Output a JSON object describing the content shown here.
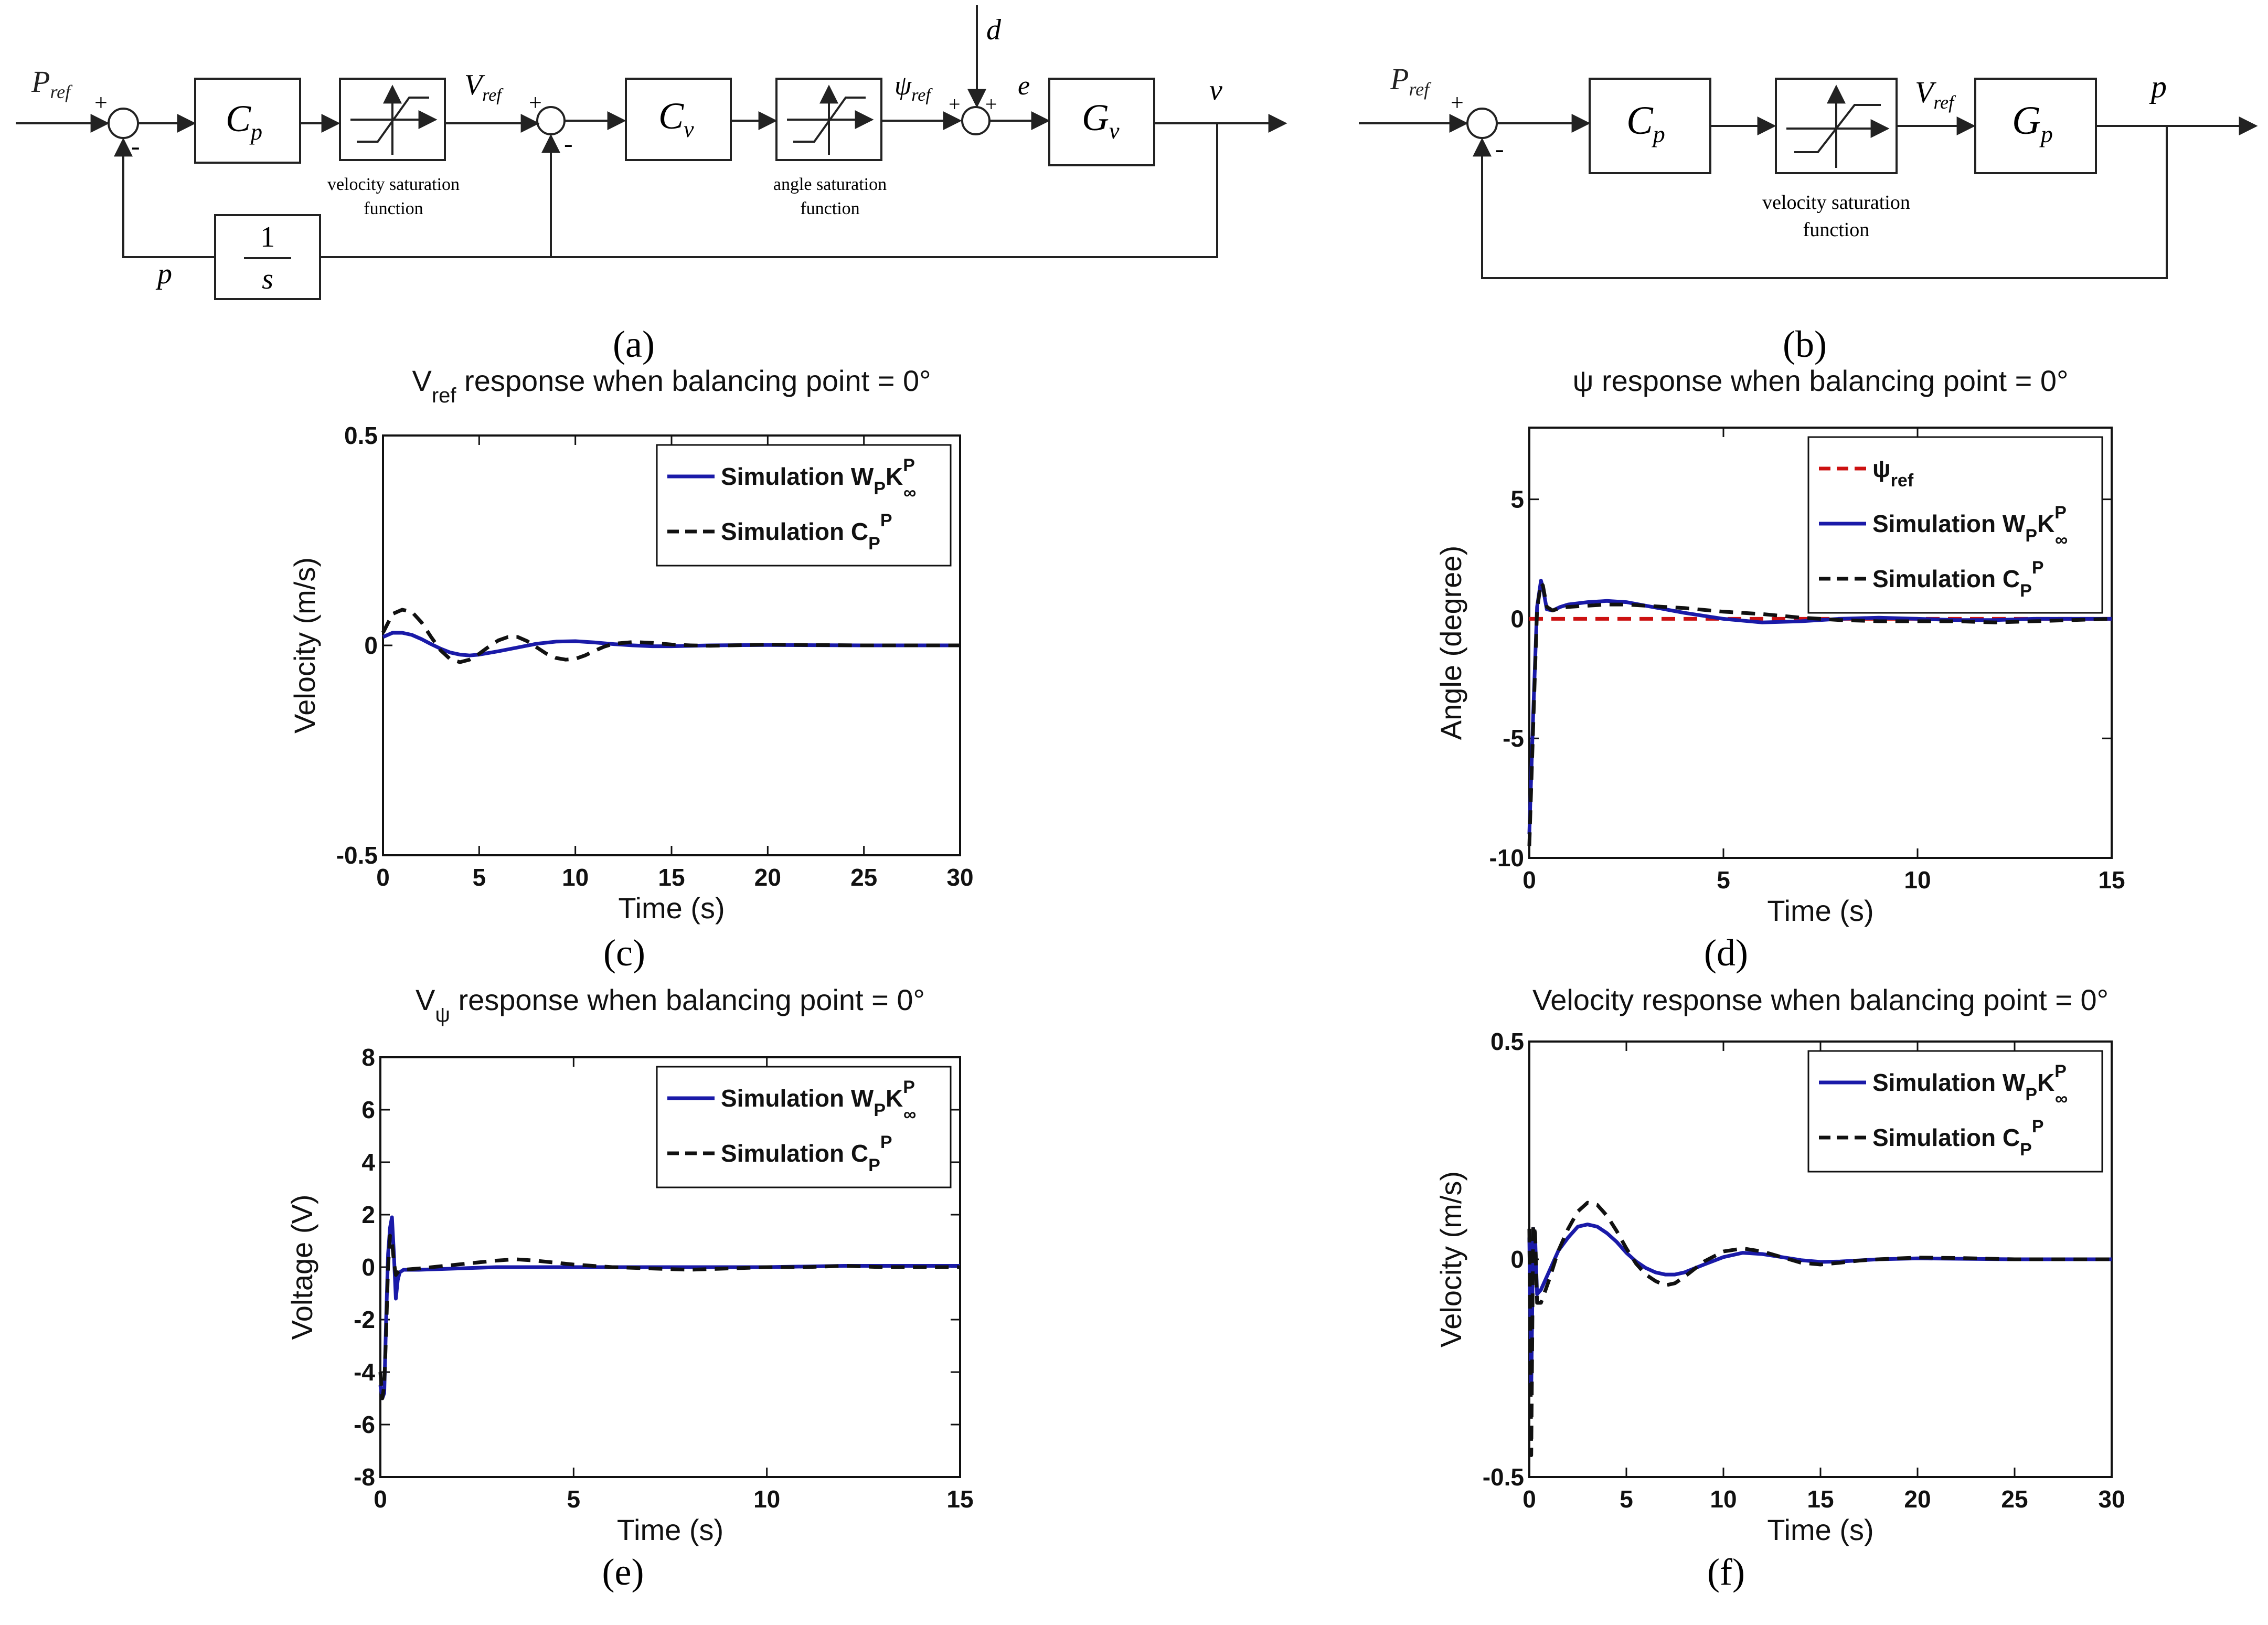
{
  "colors": {
    "blue": "#1a1aa8",
    "black": "#111111",
    "red": "#cc1111"
  },
  "diagram_a": {
    "label": "(a)",
    "input": "P",
    "input_sub": "ref",
    "block_cp": "C",
    "block_cp_sub": "p",
    "sat1_caption": [
      "velocity saturation",
      "function"
    ],
    "vref": "V",
    "vref_sub": "ref",
    "block_cv": "C",
    "block_cv_sub": "v",
    "sat2_caption": [
      "angle saturation",
      "function"
    ],
    "psiref": "ψ",
    "psiref_sub": "ref",
    "dist": "d",
    "err": "e",
    "block_gv": "G",
    "block_gv_sub": "v",
    "output": "v",
    "feedback": "p",
    "integrator_num": "1",
    "integrator_den": "s",
    "plus": "+",
    "minus": "-"
  },
  "diagram_b": {
    "label": "(b)",
    "input": "P",
    "input_sub": "ref",
    "block_cp": "C",
    "block_cp_sub": "p",
    "sat_caption": [
      "velocity saturation",
      "function"
    ],
    "vref": "V",
    "vref_sub": "ref",
    "block_gp": "G",
    "block_gp_sub": "p",
    "output": "p",
    "plus": "+",
    "minus": "-"
  },
  "chart_data": [
    {
      "panel": "(c)",
      "type": "line",
      "title_main": "V",
      "title_sub": "ref",
      "title_rest": " response when balancing point = 0°",
      "xlabel": "Time (s)",
      "ylabel": "Velocity (m/s)",
      "xlim": [
        0,
        30
      ],
      "ylim": [
        -0.5,
        0.5
      ],
      "xticks": [
        "0",
        "5",
        "10",
        "15",
        "20",
        "25",
        "30"
      ],
      "yticks": [
        "-0.5",
        "0",
        "0.5"
      ],
      "legend": [
        {
          "style": "solid-blue",
          "text": "Simulation W",
          "sub": "P",
          "mid": "K",
          "sup": "P",
          "sub2": "∞"
        },
        {
          "style": "dash-black",
          "text": "Simulation C",
          "sub": "P",
          "sup": "P"
        }
      ],
      "series": [
        {
          "name": "Simulation WPK∞P",
          "style": "solid-blue",
          "x": [
            0,
            0.5,
            1,
            1.5,
            2,
            2.5,
            3,
            3.5,
            4,
            4.5,
            5,
            6,
            7,
            8,
            9,
            10,
            11,
            12,
            13,
            14,
            15,
            17,
            20,
            25,
            30
          ],
          "y": [
            0.02,
            0.03,
            0.03,
            0.025,
            0.015,
            0.003,
            -0.008,
            -0.017,
            -0.022,
            -0.024,
            -0.022,
            -0.014,
            -0.005,
            0.004,
            0.009,
            0.01,
            0.007,
            0.003,
            0,
            -0.002,
            -0.002,
            0,
            0.001,
            0,
            0
          ]
        },
        {
          "name": "Simulation CPP",
          "style": "dash-black",
          "x": [
            0,
            0.5,
            1,
            1.5,
            2,
            2.5,
            3,
            3.5,
            4,
            4.5,
            5,
            5.5,
            6,
            6.5,
            7,
            7.5,
            8,
            8.5,
            9,
            9.5,
            10,
            10.5,
            11,
            11.5,
            12,
            13,
            14,
            15,
            16,
            17,
            18,
            20,
            22,
            25,
            30
          ],
          "y": [
            0.03,
            0.075,
            0.085,
            0.08,
            0.055,
            0.02,
            -0.012,
            -0.033,
            -0.04,
            -0.034,
            -0.02,
            -0.003,
            0.012,
            0.02,
            0.02,
            0.01,
            -0.005,
            -0.02,
            -0.03,
            -0.034,
            -0.032,
            -0.024,
            -0.013,
            -0.003,
            0.004,
            0.008,
            0.006,
            0.002,
            0,
            -0.001,
            0,
            0.002,
            0.001,
            0,
            0
          ]
        }
      ]
    },
    {
      "panel": "(d)",
      "type": "line",
      "title_main": "ψ",
      "title_sub": "",
      "title_rest": " response when balancing point = 0°",
      "xlabel": "Time (s)",
      "ylabel": "Angle (degree)",
      "xlim": [
        0,
        15
      ],
      "ylim": [
        -10,
        8
      ],
      "xticks": [
        "0",
        "5",
        "10",
        "15"
      ],
      "yticks": [
        "-10",
        "-5",
        "0",
        "5"
      ],
      "legend": [
        {
          "style": "dash-red",
          "text": "ψ",
          "sub": "ref"
        },
        {
          "style": "solid-blue",
          "text": "Simulation W",
          "sub": "P",
          "mid": "K",
          "sup": "P",
          "sub2": "∞"
        },
        {
          "style": "dash-black",
          "text": "Simulation C",
          "sub": "P",
          "sup": "P"
        }
      ],
      "series": [
        {
          "name": "ψref",
          "style": "dash-red",
          "x": [
            0,
            15
          ],
          "y": [
            0,
            0
          ]
        },
        {
          "name": "Simulation WPK∞P",
          "style": "solid-blue",
          "x": [
            0,
            0.1,
            0.2,
            0.3,
            0.35,
            0.45,
            0.6,
            0.8,
            1,
            1.5,
            2,
            2.5,
            3,
            3.5,
            4,
            5,
            6,
            7,
            8,
            9,
            10,
            11,
            12,
            13,
            14,
            15
          ],
          "y": [
            -9,
            -4,
            0.5,
            1.6,
            1.3,
            0.4,
            0.35,
            0.5,
            0.6,
            0.7,
            0.75,
            0.7,
            0.55,
            0.4,
            0.25,
            0,
            -0.15,
            -0.1,
            0,
            0.05,
            0,
            -0.05,
            -0.05,
            0,
            0,
            0
          ]
        },
        {
          "name": "Simulation CPP",
          "style": "dash-black",
          "x": [
            0,
            0.1,
            0.2,
            0.3,
            0.35,
            0.45,
            0.6,
            0.8,
            1,
            1.5,
            2,
            2.5,
            3,
            3.5,
            4,
            5,
            6,
            7,
            8,
            9,
            10,
            11,
            12,
            13,
            14,
            15
          ],
          "y": [
            -9.5,
            -4.5,
            0.4,
            1.5,
            1.4,
            0.5,
            0.35,
            0.45,
            0.5,
            0.55,
            0.6,
            0.6,
            0.55,
            0.5,
            0.45,
            0.3,
            0.2,
            0.05,
            -0.05,
            -0.1,
            -0.1,
            -0.1,
            -0.15,
            -0.1,
            -0.05,
            0
          ]
        }
      ]
    },
    {
      "panel": "(e)",
      "type": "line",
      "title_main": "V",
      "title_sub": "ψ",
      "title_rest": " response when balancing point = 0°",
      "xlabel": "Time (s)",
      "ylabel": "Voltage (V)",
      "xlim": [
        0,
        15
      ],
      "ylim": [
        -8,
        8
      ],
      "xticks": [
        "0",
        "5",
        "10",
        "15"
      ],
      "yticks": [
        "-8",
        "-6",
        "-4",
        "-2",
        "0",
        "2",
        "4",
        "6",
        "8"
      ],
      "legend": [
        {
          "style": "solid-blue",
          "text": "Simulation W",
          "sub": "P",
          "mid": "K",
          "sup": "P",
          "sub2": "∞"
        },
        {
          "style": "dash-black",
          "text": "Simulation C",
          "sub": "P",
          "sup": "P"
        }
      ],
      "series": [
        {
          "name": "Simulation WPK∞P",
          "style": "solid-blue",
          "x": [
            0,
            0.05,
            0.1,
            0.15,
            0.2,
            0.25,
            0.3,
            0.35,
            0.4,
            0.45,
            0.5,
            0.6,
            1,
            2,
            3,
            4,
            5,
            6,
            8,
            10,
            12,
            15
          ],
          "y": [
            -4.5,
            -5,
            -4.8,
            -2,
            0.5,
            1.5,
            1.9,
            0.5,
            -1.2,
            -0.5,
            -0.2,
            -0.1,
            -0.1,
            -0.05,
            0,
            0,
            0,
            0,
            0,
            0,
            0.05,
            0.05
          ]
        },
        {
          "name": "Simulation CPP",
          "style": "dash-black",
          "x": [
            0,
            0.05,
            0.1,
            0.15,
            0.2,
            0.25,
            0.3,
            0.35,
            0.4,
            0.45,
            0.5,
            0.6,
            1,
            2,
            3,
            3.5,
            4,
            5,
            6,
            7,
            8,
            9,
            10,
            11,
            12,
            13,
            15
          ],
          "y": [
            -4,
            -5,
            -4.5,
            -2.5,
            0,
            1.2,
            1,
            0.2,
            -0.3,
            -0.2,
            -0.15,
            -0.1,
            -0.05,
            0.1,
            0.25,
            0.3,
            0.25,
            0.1,
            0,
            -0.05,
            -0.1,
            -0.05,
            0,
            0,
            0.05,
            0,
            0
          ]
        }
      ]
    },
    {
      "panel": "(f)",
      "type": "line",
      "title_main": "Velocity",
      "title_sub": "",
      "title_rest": " response when balancing point = 0°",
      "xlabel": "Time (s)",
      "ylabel": "Velocity (m/s)",
      "xlim": [
        0,
        30
      ],
      "ylim": [
        -0.5,
        0.5
      ],
      "xticks": [
        "0",
        "5",
        "10",
        "15",
        "20",
        "25",
        "30"
      ],
      "yticks": [
        "-0.5",
        "0",
        "0.5"
      ],
      "legend": [
        {
          "style": "solid-blue",
          "text": "Simulation W",
          "sub": "P",
          "mid": "K",
          "sup": "P",
          "sub2": "∞"
        },
        {
          "style": "dash-black",
          "text": "Simulation C",
          "sub": "P",
          "sup": "P"
        }
      ],
      "series": [
        {
          "name": "Simulation WPK∞P",
          "style": "solid-blue",
          "x": [
            0,
            0.1,
            0.2,
            0.3,
            0.4,
            0.6,
            1,
            1.5,
            2,
            2.5,
            3,
            3.5,
            4,
            4.5,
            5,
            5.5,
            6,
            6.5,
            7,
            7.5,
            8,
            9,
            10,
            11,
            12,
            13,
            14,
            15,
            16,
            18,
            20,
            25,
            30
          ],
          "y": [
            0.05,
            -0.3,
            0.07,
            0.05,
            -0.08,
            -0.07,
            -0.03,
            0.02,
            0.05,
            0.075,
            0.08,
            0.075,
            0.06,
            0.04,
            0.015,
            -0.005,
            -0.02,
            -0.03,
            -0.035,
            -0.035,
            -0.03,
            -0.012,
            0.005,
            0.015,
            0.012,
            0.005,
            -0.002,
            -0.006,
            -0.005,
            0,
            0.002,
            0,
            0
          ]
        },
        {
          "name": "Simulation CPP",
          "style": "dash-black",
          "x": [
            0,
            0.1,
            0.2,
            0.3,
            0.4,
            0.6,
            1,
            1.5,
            2,
            2.5,
            3,
            3.5,
            4,
            4.5,
            5,
            5.5,
            6,
            6.5,
            7,
            7.5,
            8,
            9,
            10,
            11,
            12,
            13,
            14,
            15,
            16,
            17,
            18,
            20,
            22,
            25,
            30
          ],
          "y": [
            0.07,
            -0.45,
            0.08,
            0.06,
            -0.1,
            -0.1,
            -0.05,
            0.02,
            0.07,
            0.11,
            0.13,
            0.125,
            0.1,
            0.065,
            0.025,
            -0.01,
            -0.035,
            -0.05,
            -0.06,
            -0.055,
            -0.04,
            -0.005,
            0.018,
            0.025,
            0.018,
            0.005,
            -0.008,
            -0.012,
            -0.008,
            -0.003,
            0,
            0.004,
            0.003,
            0,
            0
          ]
        }
      ]
    }
  ]
}
